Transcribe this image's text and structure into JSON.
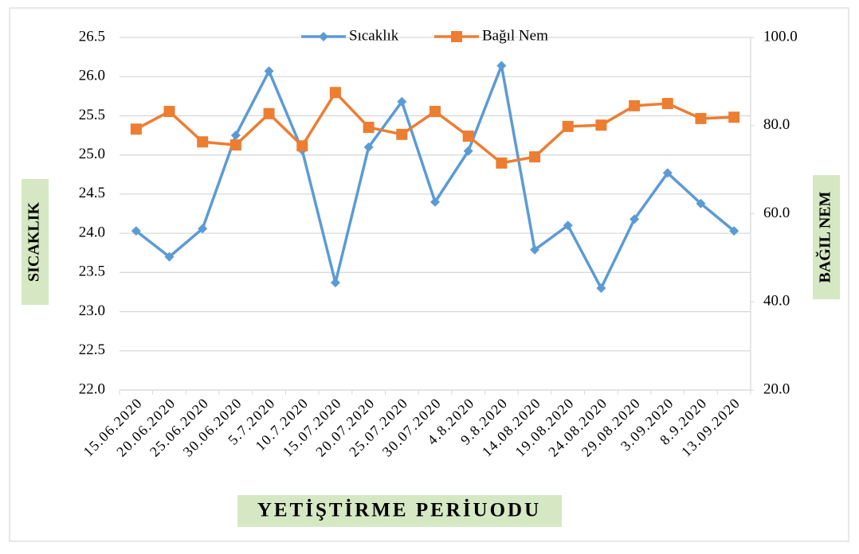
{
  "chart_data": {
    "type": "line",
    "categories": [
      "15.06.2020",
      "20.06.2020",
      "25.06.2020",
      "30.06.2020",
      "5.7.2020",
      "10.7.2020",
      "15.07.2020",
      "20.07.2020",
      "25.07.2020",
      "30.07.2020",
      "4.8.2020",
      "9.8.2020",
      "14.08.2020",
      "19.08.2020",
      "24.08.2020",
      "29.08.2020",
      "3.09.2020",
      "8.9.2020",
      "13.09.2020"
    ],
    "series": [
      {
        "name": "Sıcaklık",
        "color": "#5b9bd5",
        "values": [
          24.03,
          23.7,
          24.06,
          25.25,
          26.07,
          25.06,
          23.37,
          25.1,
          25.68,
          24.4,
          25.05,
          26.14,
          23.79,
          24.1,
          23.3,
          24.18,
          24.77,
          24.38,
          24.03
        ]
      },
      {
        "name": "Bağıl Nem",
        "color": "#ed7d31",
        "axis": "y2",
        "values": [
          79.2,
          83.2,
          76.3,
          75.6,
          82.7,
          75.4,
          87.5,
          79.6,
          78.0,
          83.2,
          77.6,
          71.5,
          72.9,
          79.8,
          80.1,
          84.5,
          85.0,
          81.6,
          81.9
        ]
      }
    ],
    "ylabel": "SICAKLIK",
    "y2label": "BAĞIL NEM",
    "xlabel": "YETİŞTİRME PERİUODU",
    "ylim": [
      22,
      26.5
    ],
    "yticks": [
      {
        "value": 22,
        "label": "22.0"
      },
      22.5,
      {
        "value": 23,
        "label": "23.0"
      },
      23.5,
      {
        "value": 24,
        "label": "24.0"
      },
      24.5,
      {
        "value": 25,
        "label": "25.0"
      },
      25.5,
      {
        "value": 26,
        "label": "26.0"
      },
      26.5
    ],
    "y2lim": [
      20,
      100
    ],
    "y2ticks": [
      {
        "value": 20,
        "label": "20.0"
      },
      {
        "value": 40,
        "label": "40.0"
      },
      {
        "value": 60,
        "label": "60.0"
      },
      {
        "value": 80,
        "label": "80.0"
      },
      {
        "value": 100,
        "label": "100.0"
      }
    ],
    "grid": true,
    "legend": "top"
  }
}
